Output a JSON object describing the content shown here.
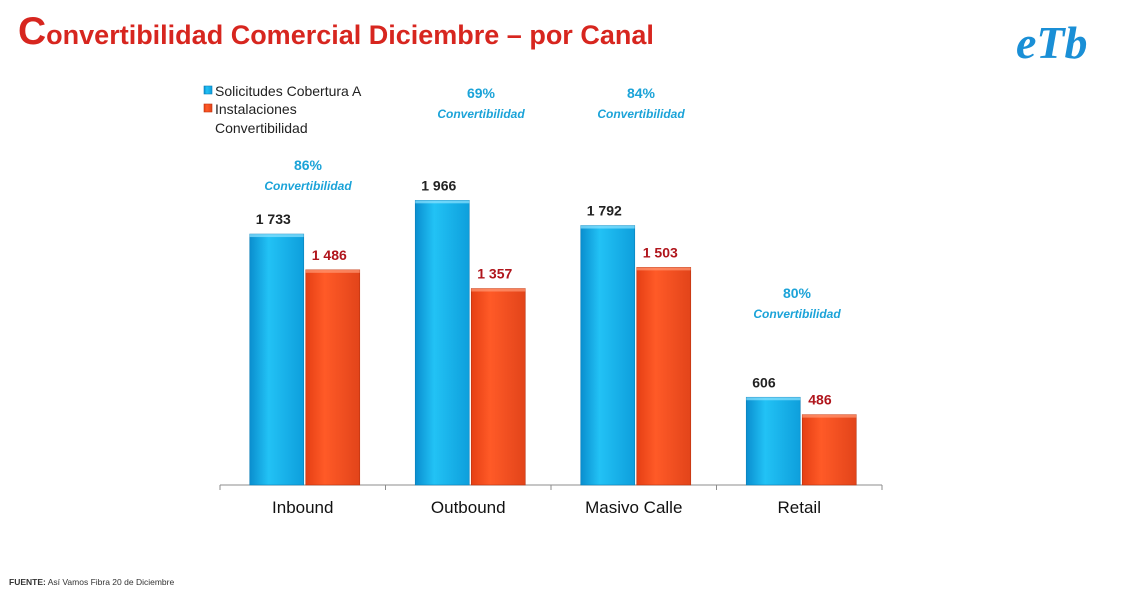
{
  "header": {
    "title_initial": "C",
    "title_rest": "onvertibilidad Comercial Diciembre – por Canal",
    "logo": "etb-logo",
    "logo_text": "eTb"
  },
  "footer": {
    "source_label": "FUENTE:",
    "source_text": "Así Vamos Fibra 20 de Diciembre"
  },
  "colors": {
    "title": "#d7261f",
    "series_a": "#12b4ea",
    "series_b": "#ff4d1f",
    "series_a_label": "#222222",
    "series_b_label": "#b0151c",
    "conversion": "#1ba3d8"
  },
  "chart_data": {
    "type": "bar",
    "categories": [
      "Inbound",
      "Outbound",
      "Masivo Calle",
      "Retail"
    ],
    "series": [
      {
        "name": "Solicitudes Cobertura A",
        "values": [
          1733,
          1966,
          1792,
          606
        ],
        "labels": [
          "1 733",
          "1 966",
          "1 792",
          "606"
        ]
      },
      {
        "name": "Instalaciones",
        "values": [
          1486,
          1357,
          1503,
          486
        ],
        "labels": [
          "1 486",
          "1 357",
          "1 503",
          "486"
        ]
      }
    ],
    "legend_extra": "Convertibilidad",
    "legend_position": "top-left",
    "conversion": [
      {
        "category": "Inbound",
        "value": "86%",
        "label": "Convertibilidad"
      },
      {
        "category": "Outbound",
        "value": "69%",
        "label": "Convertibilidad"
      },
      {
        "category": "Masivo Calle",
        "value": "84%",
        "label": "Convertibilidad"
      },
      {
        "category": "Retail",
        "value": "80%",
        "label": "Convertibilidad"
      }
    ],
    "ylim": [
      0,
      2500
    ],
    "grid": false,
    "xlabel": "",
    "ylabel": ""
  }
}
